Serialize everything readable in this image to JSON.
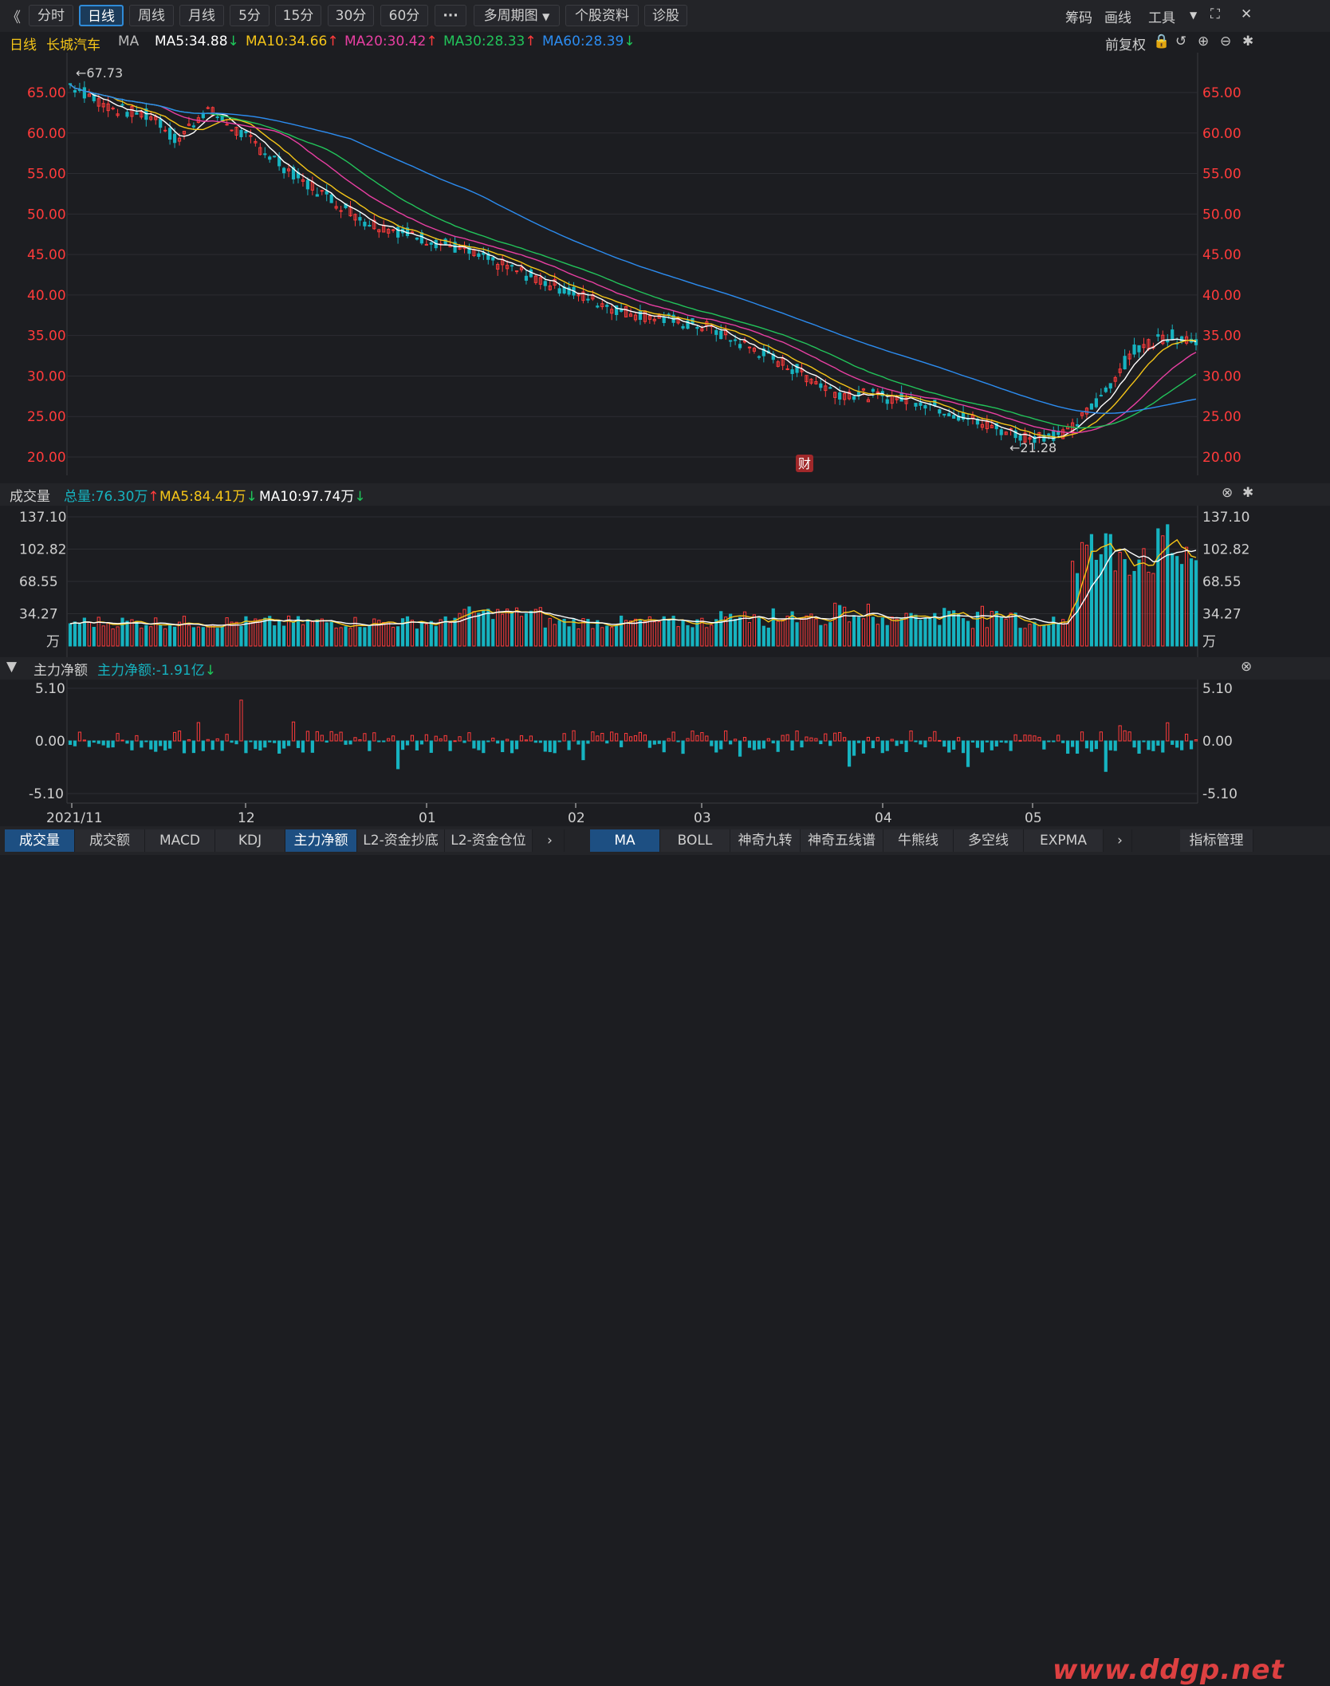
{
  "toolbar": {
    "back": "《",
    "periods": [
      "分时",
      "日线",
      "周线",
      "月线",
      "5分",
      "15分",
      "30分",
      "60分"
    ],
    "more": "···",
    "multi_period": "多周期图",
    "profile": "个股资料",
    "diagnose": "诊股",
    "right": {
      "chips": "筹码",
      "draw": "画线",
      "tools": "工具"
    }
  },
  "ma_legend": {
    "period": "日线",
    "name": "长城汽车",
    "ma": "MA",
    "ma5": "MA5:34.88",
    "ma10": "MA10:34.66",
    "ma20": "MA20:30.42",
    "ma30": "MA30:28.33",
    "ma60": "MA60:28.39",
    "adjust": "前复权"
  },
  "colors": {
    "ma5": "#ffffff",
    "ma10": "#f5c518",
    "ma20": "#e83fa2",
    "ma30": "#22c35a",
    "ma60": "#2c8cf0",
    "up": "#ff3b3b",
    "down": "#16b3c0"
  },
  "price_axis": [
    "65.00",
    "60.00",
    "55.00",
    "50.00",
    "45.00",
    "40.00",
    "35.00",
    "30.00",
    "25.00",
    "20.00"
  ],
  "high_label": "67.73",
  "low_label": "21.28",
  "fin_badge": "财",
  "volume": {
    "title": "成交量",
    "total": "总量:76.30万",
    "ma5": "MA5:84.41万",
    "ma10": "MA10:97.74万",
    "axis": [
      "137.10",
      "102.82",
      "68.55",
      "34.27",
      "万"
    ]
  },
  "netflow": {
    "title": "主力净额",
    "value": "主力净额:-1.91亿",
    "axis": [
      "5.10",
      "0.00",
      "-5.10"
    ]
  },
  "x_axis": [
    "2021/11",
    "12",
    "01",
    "02",
    "03",
    "04",
    "05"
  ],
  "tabs_left": [
    "成交量",
    "成交额",
    "MACD",
    "KDJ",
    "主力净额",
    "L2-资金抄底",
    "L2-资金仓位"
  ],
  "tabs_right": [
    "MA",
    "BOLL",
    "神奇九转",
    "神奇五线谱",
    "牛熊线",
    "多空线",
    "EXPMA"
  ],
  "tabs_end": "指标管理",
  "watermark": "www.ddgp.net"
}
